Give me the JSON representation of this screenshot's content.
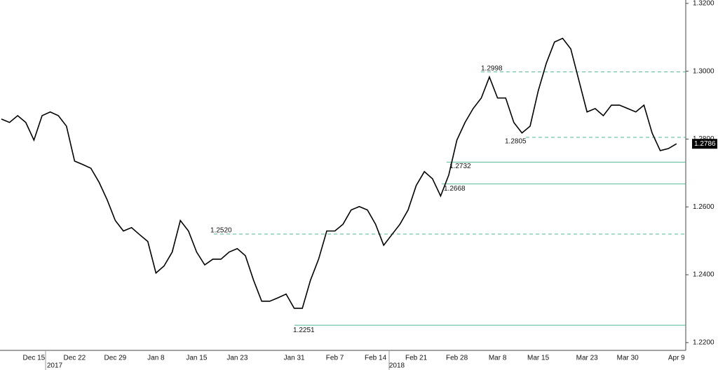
{
  "chart_data": {
    "type": "line",
    "categories": [
      null,
      null,
      null,
      null,
      "Dec 15",
      null,
      null,
      null,
      null,
      "Dec 22",
      null,
      null,
      null,
      null,
      "Dec 29",
      null,
      null,
      null,
      null,
      "Jan 8",
      null,
      null,
      null,
      null,
      "Jan 15",
      null,
      null,
      null,
      null,
      "Jan 23",
      null,
      null,
      null,
      null,
      null,
      null,
      "Jan 31",
      null,
      null,
      null,
      null,
      "Feb 7",
      null,
      null,
      null,
      null,
      "Feb 14",
      null,
      null,
      null,
      null,
      "Feb 21",
      null,
      null,
      null,
      null,
      "Feb 28",
      null,
      null,
      null,
      null,
      "Mar 8",
      null,
      null,
      null,
      null,
      "Mar 15",
      null,
      null,
      null,
      null,
      null,
      "Mar 23",
      null,
      null,
      null,
      null,
      "Mar 30",
      null,
      null,
      null,
      null,
      null,
      "Apr 9"
    ],
    "series": [
      {
        "color": "#000000",
        "values": [
          1.2859,
          1.2849,
          1.2869,
          1.2849,
          1.2797,
          1.2869,
          1.288,
          1.2869,
          1.2838,
          1.2735,
          1.2725,
          1.2714,
          1.2673,
          1.2621,
          1.256,
          1.2529,
          1.2539,
          1.2518,
          1.2498,
          1.2405,
          1.2426,
          1.2467,
          1.256,
          1.2529,
          1.2467,
          1.2429,
          1.2446,
          1.2446,
          1.2467,
          1.2477,
          1.2456,
          1.2384,
          1.2322,
          1.2322,
          1.2332,
          1.2343,
          1.2301,
          1.2301,
          1.2384,
          1.2446,
          1.2529,
          1.2529,
          1.2549,
          1.2591,
          1.2601,
          1.2591,
          1.2549,
          1.2487,
          1.2518,
          1.2549,
          1.2591,
          1.2663,
          1.2704,
          1.2683,
          1.2632,
          1.2694,
          1.2797,
          1.2849,
          1.289,
          1.2921,
          1.2983,
          1.2921,
          1.2921,
          1.2849,
          1.2818,
          1.2838,
          1.2942,
          1.3024,
          1.3086,
          1.3097,
          1.3066,
          1.2973,
          1.288,
          1.289,
          1.2869,
          1.29,
          1.29,
          1.289,
          1.288,
          1.29,
          1.2818,
          1.2766,
          1.2772,
          1.2786
        ]
      }
    ],
    "last_price": 1.2786,
    "levels": [
      {
        "value": 1.2998,
        "label": "1.2998",
        "style": "dashed"
      },
      {
        "value": 1.2805,
        "label": "1.2805",
        "style": "dashed"
      },
      {
        "value": 1.2732,
        "label": "1.2732",
        "style": "solid"
      },
      {
        "value": 1.2668,
        "label": "1.2668",
        "style": "solid"
      },
      {
        "value": 1.252,
        "label": "1.2520",
        "style": "dashed"
      },
      {
        "value": 1.2251,
        "label": "1.2251",
        "style": "solid"
      }
    ],
    "level_color": "#52b894",
    "year_labels": [
      "2017",
      "2018"
    ],
    "ylim": [
      1.2177,
      1.321
    ],
    "yticks": [
      {
        "value": 1.32,
        "label": "1.3200"
      },
      {
        "value": 1.3,
        "label": "1.3000"
      },
      {
        "value": 1.28,
        "label": "1.2800"
      },
      {
        "value": 1.26,
        "label": "1.2600"
      },
      {
        "value": 1.24,
        "label": "1.2400"
      },
      {
        "value": 1.22,
        "label": "1.2200"
      }
    ]
  }
}
